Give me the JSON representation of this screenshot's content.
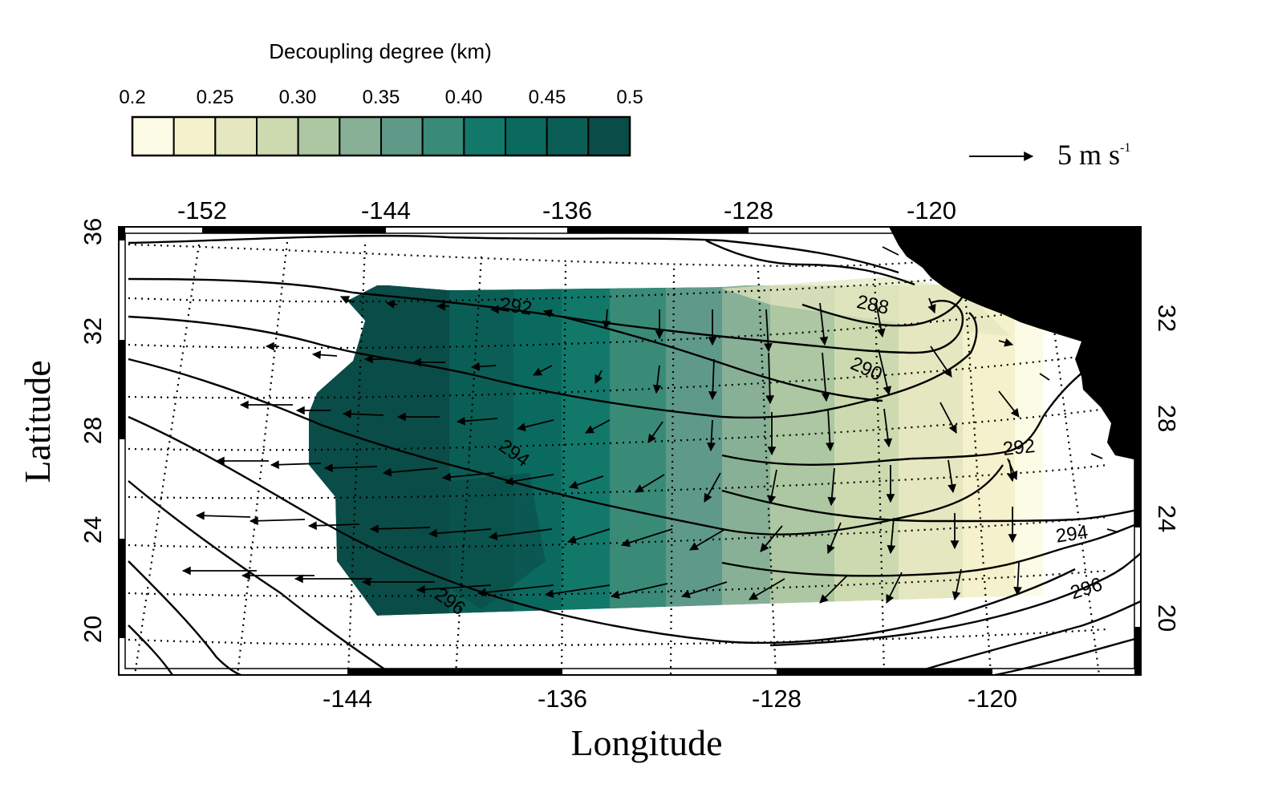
{
  "colorbar": {
    "title": "Decoupling degree (km)",
    "tick_labels": [
      "0.2",
      "0.25",
      "0.30",
      "0.35",
      "0.40",
      "0.45",
      "0.5"
    ],
    "colors": [
      "#fcfbe6",
      "#f4f1cc",
      "#e4e7c0",
      "#cddab0",
      "#acc7a1",
      "#88b096",
      "#5f9a88",
      "#3a8a78",
      "#12786a",
      "#0b6a5f",
      "#0a5e55",
      "#0a4c47"
    ]
  },
  "reference_vector": {
    "label_main": "5 m s",
    "label_sup": "-1"
  },
  "axes": {
    "xlabel": "Longitude",
    "ylabel": "Latitude",
    "top_ticks": [
      "-152",
      "-144",
      "-136",
      "-128",
      "-120"
    ],
    "bottom_ticks": [
      "-144",
      "-136",
      "-128",
      "-120"
    ],
    "left_ticks": [
      "36",
      "32",
      "28",
      "24",
      "20"
    ],
    "right_ticks": [
      "32",
      "28",
      "24",
      "20"
    ]
  },
  "contour_labels": [
    "292",
    "288",
    "290",
    "294",
    "292",
    "294",
    "296",
    "296"
  ],
  "map": {
    "land_color": "#000000",
    "isotherm_levels_K": [
      286,
      288,
      290,
      292,
      294,
      296,
      298
    ]
  }
}
